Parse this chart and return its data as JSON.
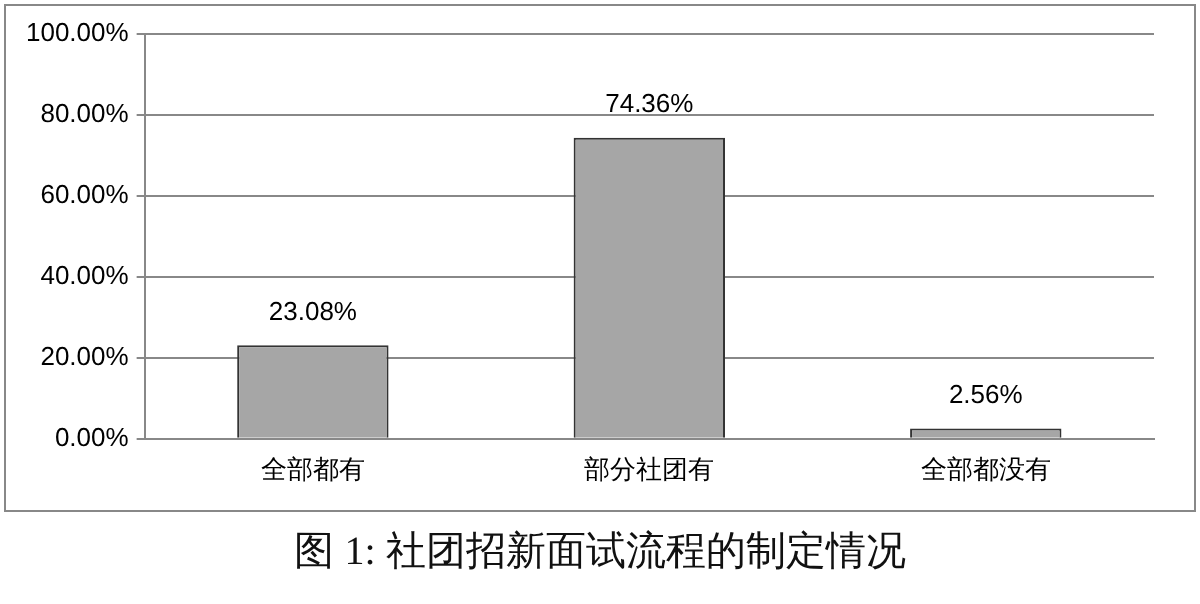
{
  "chart_data": {
    "type": "bar",
    "title": "图 1: 社团招新面试流程的制定情况",
    "categories": [
      "全部都有",
      "部分社团有",
      "全部都没有"
    ],
    "values": [
      23.08,
      74.36,
      2.56
    ],
    "value_labels": [
      "23.08%",
      "74.36%",
      "2.56%"
    ],
    "color": "#a6a6a6",
    "ylim": [
      0,
      100
    ],
    "yticks": [
      {
        "value": 0,
        "label": "0.00%"
      },
      {
        "value": 20,
        "label": "20.00%"
      },
      {
        "value": 40,
        "label": "40.00%"
      },
      {
        "value": 60,
        "label": "60.00%"
      },
      {
        "value": 80,
        "label": "80.00%"
      },
      {
        "value": 100,
        "label": "100.00%"
      }
    ],
    "grid": "y"
  }
}
